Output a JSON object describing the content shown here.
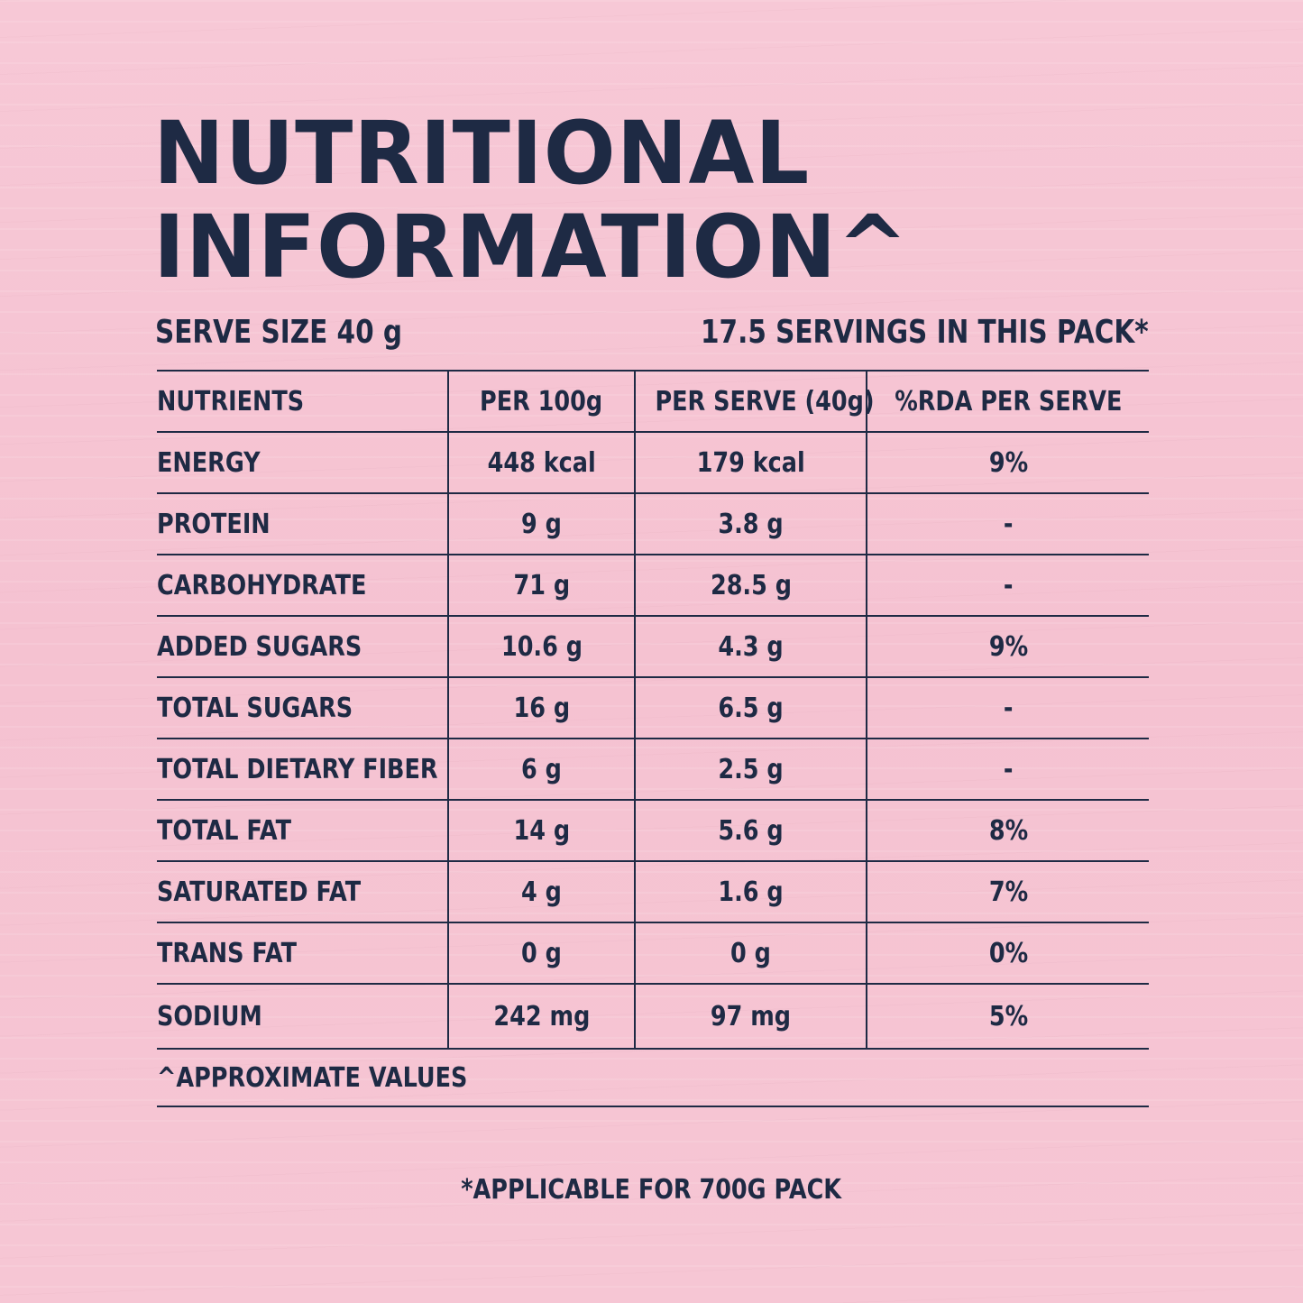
{
  "title": {
    "line1": "NUTRITIONAL",
    "line2": "INFORMATION^"
  },
  "serve_size": "SERVE SIZE 40 g",
  "servings": "17.5 SERVINGS IN THIS PACK*",
  "table": {
    "headers": [
      "NUTRIENTS",
      "PER 100g",
      "PER SERVE (40g)",
      "%RDA PER SERVE"
    ],
    "rows": [
      {
        "nutrient": "ENERGY",
        "per100": "448 kcal",
        "perserve": "179 kcal",
        "rda": "9%"
      },
      {
        "nutrient": "PROTEIN",
        "per100": "9 g",
        "perserve": "3.8 g",
        "rda": "-"
      },
      {
        "nutrient": "CARBOHYDRATE",
        "per100": "71 g",
        "perserve": "28.5 g",
        "rda": "-"
      },
      {
        "nutrient": "ADDED SUGARS",
        "per100": "10.6 g",
        "perserve": "4.3 g",
        "rda": "9%"
      },
      {
        "nutrient": "TOTAL SUGARS",
        "per100": "16 g",
        "perserve": "6.5 g",
        "rda": "-"
      },
      {
        "nutrient": "TOTAL DIETARY FIBER",
        "per100": "6 g",
        "perserve": "2.5 g",
        "rda": "-"
      },
      {
        "nutrient": "TOTAL FAT",
        "per100": "14 g",
        "perserve": "5.6 g",
        "rda": "8%"
      },
      {
        "nutrient": "SATURATED FAT",
        "per100": "4 g",
        "perserve": "1.6 g",
        "rda": "7%"
      },
      {
        "nutrient": "TRANS FAT",
        "per100": "0 g",
        "perserve": "0 g",
        "rda": "0%"
      },
      {
        "nutrient": "SODIUM",
        "per100": "242 mg",
        "perserve": "97 mg",
        "rda": "5%"
      }
    ],
    "footnote": "^APPROXIMATE VALUES"
  },
  "bottom_note": "*APPLICABLE FOR 700G PACK"
}
